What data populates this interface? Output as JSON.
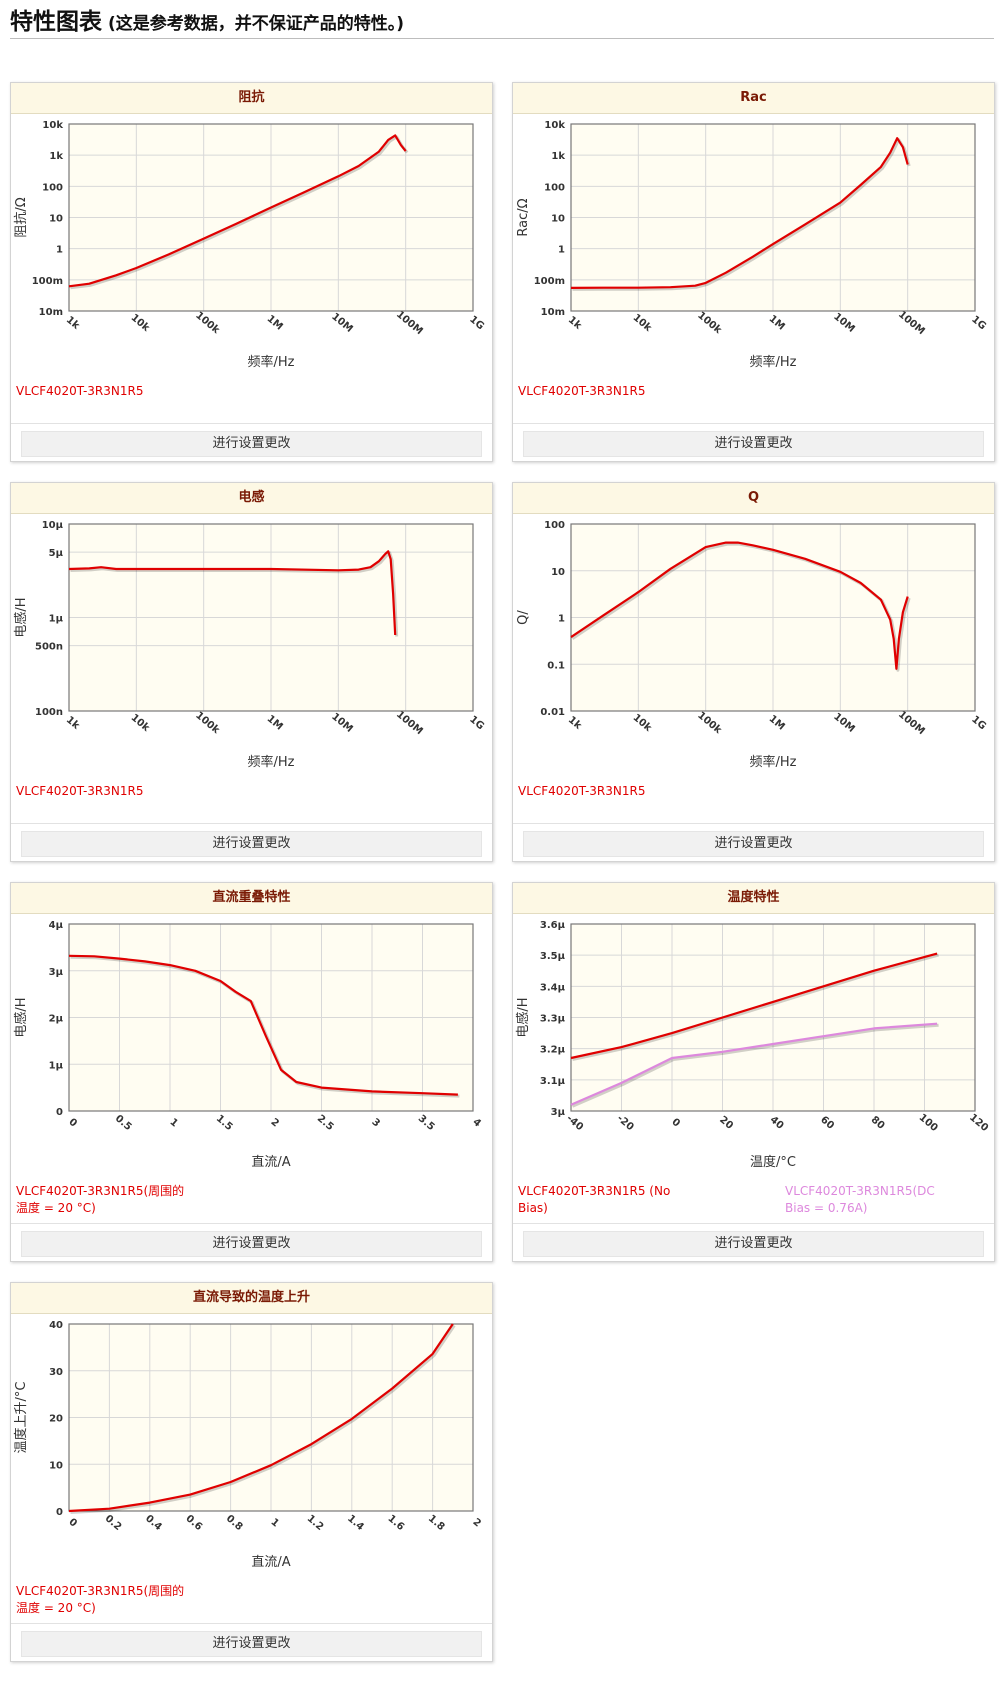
{
  "page": {
    "title": "特性图表",
    "subtitle": "(这是参考数据，并不保证产品的特性。)",
    "button_label": "进行设置更改",
    "colors": {
      "red": "#e00000",
      "pink": "#dd88dd",
      "plot_bg": "#fffdf2",
      "grid": "#d8d8d8",
      "title_bg": "#fdf8e4",
      "title_text": "#7a1a05"
    }
  },
  "charts": [
    {
      "title": "阻抗",
      "chart_data": {
        "type": "line",
        "xlabel": "频率/Hz",
        "ylabel": "阻抗/Ω",
        "x_scale": "log",
        "y_scale": "log",
        "xlim": [
          1000,
          1000000000
        ],
        "ylim": [
          0.01,
          10000
        ],
        "x_ticks": [
          {
            "v": 1000,
            "label": "1k"
          },
          {
            "v": 10000,
            "label": "10k"
          },
          {
            "v": 100000,
            "label": "100k"
          },
          {
            "v": 1000000,
            "label": "1M"
          },
          {
            "v": 10000000,
            "label": "10M"
          },
          {
            "v": 100000000,
            "label": "100M"
          },
          {
            "v": 1000000000,
            "label": "1G"
          }
        ],
        "y_ticks": [
          {
            "v": 0.01,
            "label": "10m"
          },
          {
            "v": 0.1,
            "label": "100m"
          },
          {
            "v": 1,
            "label": "1"
          },
          {
            "v": 10,
            "label": "10"
          },
          {
            "v": 100,
            "label": "100"
          },
          {
            "v": 1000,
            "label": "1k"
          },
          {
            "v": 10000,
            "label": "10k"
          }
        ],
        "series": [
          {
            "name": "VLCF4020T-3R3N1R5",
            "color": "#e00000",
            "x": [
              1000,
              2000,
              5000,
              10000,
              30000,
              100000,
              300000,
              1000000,
              3000000,
              10000000,
              20000000,
              40000000,
              55000000,
              70000000,
              85000000,
              100000000
            ],
            "y": [
              0.062,
              0.075,
              0.14,
              0.24,
              0.65,
              2.1,
              6.2,
              21,
              62,
              210,
              450,
              1300,
              3100,
              4300,
              2100,
              1350
            ]
          }
        ]
      },
      "legend": [
        "VLCF4020T-3R3N1R5"
      ]
    },
    {
      "title": "Rac",
      "chart_data": {
        "type": "line",
        "xlabel": "频率/Hz",
        "ylabel": "Rac/Ω",
        "x_scale": "log",
        "y_scale": "log",
        "xlim": [
          1000,
          1000000000
        ],
        "ylim": [
          0.01,
          10000
        ],
        "x_ticks": [
          {
            "v": 1000,
            "label": "1k"
          },
          {
            "v": 10000,
            "label": "10k"
          },
          {
            "v": 100000,
            "label": "100k"
          },
          {
            "v": 1000000,
            "label": "1M"
          },
          {
            "v": 10000000,
            "label": "10M"
          },
          {
            "v": 100000000,
            "label": "100M"
          },
          {
            "v": 1000000000,
            "label": "1G"
          }
        ],
        "y_ticks": [
          {
            "v": 0.01,
            "label": "10m"
          },
          {
            "v": 0.1,
            "label": "100m"
          },
          {
            "v": 1,
            "label": "1"
          },
          {
            "v": 10,
            "label": "10"
          },
          {
            "v": 100,
            "label": "100"
          },
          {
            "v": 1000,
            "label": "1k"
          },
          {
            "v": 10000,
            "label": "10k"
          }
        ],
        "series": [
          {
            "name": "VLCF4020T-3R3N1R5",
            "color": "#e00000",
            "x": [
              1000,
              3000,
              10000,
              30000,
              70000,
              100000,
              200000,
              500000,
              1000000,
              3000000,
              10000000,
              20000000,
              40000000,
              55000000,
              70000000,
              85000000,
              100000000
            ],
            "y": [
              0.055,
              0.056,
              0.056,
              0.058,
              0.065,
              0.08,
              0.17,
              0.55,
              1.4,
              6,
              30,
              110,
              420,
              1200,
              3500,
              1800,
              500
            ]
          }
        ]
      },
      "legend": [
        "VLCF4020T-3R3N1R5"
      ]
    },
    {
      "title": "电感",
      "chart_data": {
        "type": "line",
        "xlabel": "频率/Hz",
        "ylabel": "电感/H",
        "x_scale": "log",
        "y_scale": "log",
        "xlim": [
          1000,
          1000000000
        ],
        "ylim": [
          1e-07,
          1e-05
        ],
        "x_ticks": [
          {
            "v": 1000,
            "label": "1k"
          },
          {
            "v": 10000,
            "label": "10k"
          },
          {
            "v": 100000,
            "label": "100k"
          },
          {
            "v": 1000000,
            "label": "1M"
          },
          {
            "v": 10000000,
            "label": "10M"
          },
          {
            "v": 100000000,
            "label": "100M"
          },
          {
            "v": 1000000000,
            "label": "1G"
          }
        ],
        "y_ticks": [
          {
            "v": 1e-07,
            "label": "100n"
          },
          {
            "v": 5e-07,
            "label": "500n"
          },
          {
            "v": 1e-06,
            "label": "1μ"
          },
          {
            "v": 5e-06,
            "label": "5μ"
          },
          {
            "v": 1e-05,
            "label": "10μ"
          }
        ],
        "series": [
          {
            "name": "VLCF4020T-3R3N1R5",
            "color": "#e00000",
            "x": [
              1000,
              2000,
              3000,
              5000,
              10000,
              100000,
              1000000,
              10000000,
              20000000,
              30000000,
              40000000,
              50000000,
              55000000,
              60000000,
              65000000,
              70000000
            ],
            "y": [
              3.3e-06,
              3.35e-06,
              3.45e-06,
              3.3e-06,
              3.3e-06,
              3.3e-06,
              3.3e-06,
              3.2e-06,
              3.25e-06,
              3.45e-06,
              4e-06,
              4.8e-06,
              5.1e-06,
              4.2e-06,
              1.8e-06,
              6.5e-07
            ]
          }
        ]
      },
      "legend": [
        "VLCF4020T-3R3N1R5"
      ]
    },
    {
      "title": "Q",
      "chart_data": {
        "type": "line",
        "xlabel": "频率/Hz",
        "ylabel": "Q/",
        "x_scale": "log",
        "y_scale": "log",
        "xlim": [
          1000,
          1000000000
        ],
        "ylim": [
          0.01,
          100
        ],
        "x_ticks": [
          {
            "v": 1000,
            "label": "1k"
          },
          {
            "v": 10000,
            "label": "10k"
          },
          {
            "v": 100000,
            "label": "100k"
          },
          {
            "v": 1000000,
            "label": "1M"
          },
          {
            "v": 10000000,
            "label": "10M"
          },
          {
            "v": 100000000,
            "label": "100M"
          },
          {
            "v": 1000000000,
            "label": "1G"
          }
        ],
        "y_ticks": [
          {
            "v": 0.01,
            "label": "0.01"
          },
          {
            "v": 0.1,
            "label": "0.1"
          },
          {
            "v": 1,
            "label": "1"
          },
          {
            "v": 10,
            "label": "10"
          },
          {
            "v": 100,
            "label": "100"
          }
        ],
        "series": [
          {
            "name": "VLCF4020T-3R3N1R5",
            "color": "#e00000",
            "x": [
              1000,
              3000,
              10000,
              30000,
              100000,
              200000,
              300000,
              500000,
              1000000,
              3000000,
              10000000,
              20000000,
              40000000,
              55000000,
              62000000,
              68000000,
              74000000,
              85000000,
              100000000
            ],
            "y": [
              0.38,
              1.1,
              3.5,
              11,
              32,
              40,
              40,
              35,
              28,
              18,
              9.5,
              5.5,
              2.4,
              0.9,
              0.35,
              0.08,
              0.35,
              1.3,
              2.8
            ]
          }
        ]
      },
      "legend": [
        "VLCF4020T-3R3N1R5"
      ]
    },
    {
      "title": "直流重叠特性",
      "chart_data": {
        "type": "line",
        "xlabel": "直流/A",
        "ylabel": "电感/H",
        "x_scale": "linear",
        "y_scale": "linear",
        "xlim": [
          0,
          4
        ],
        "ylim": [
          0,
          4e-06
        ],
        "x_ticks": [
          {
            "v": 0,
            "label": "0"
          },
          {
            "v": 0.5,
            "label": "0.5"
          },
          {
            "v": 1,
            "label": "1"
          },
          {
            "v": 1.5,
            "label": "1.5"
          },
          {
            "v": 2,
            "label": "2"
          },
          {
            "v": 2.5,
            "label": "2.5"
          },
          {
            "v": 3,
            "label": "3"
          },
          {
            "v": 3.5,
            "label": "3.5"
          },
          {
            "v": 4,
            "label": "4"
          }
        ],
        "y_ticks": [
          {
            "v": 0,
            "label": "0"
          },
          {
            "v": 1e-06,
            "label": "1μ"
          },
          {
            "v": 2e-06,
            "label": "2μ"
          },
          {
            "v": 3e-06,
            "label": "3μ"
          },
          {
            "v": 4e-06,
            "label": "4μ"
          }
        ],
        "series": [
          {
            "name": "VLCF4020T-3R3N1R5(周围的温度 = 20 °C)",
            "color": "#e00000",
            "x": [
              0,
              0.25,
              0.5,
              0.75,
              1.0,
              1.25,
              1.5,
              1.65,
              1.8,
              1.95,
              2.1,
              2.25,
              2.5,
              3.0,
              3.5,
              3.85
            ],
            "y": [
              3.32e-06,
              3.31e-06,
              3.26e-06,
              3.2e-06,
              3.12e-06,
              3e-06,
              2.78e-06,
              2.55e-06,
              2.35e-06,
              1.6e-06,
              8.8e-07,
              6.2e-07,
              5e-07,
              4.2e-07,
              3.8e-07,
              3.5e-07
            ]
          }
        ]
      },
      "legend": [
        "VLCF4020T-3R3N1R5(周围的温度 = 20 °C)"
      ]
    },
    {
      "title": "温度特性",
      "chart_data": {
        "type": "line",
        "xlabel": "温度/°C",
        "ylabel": "电感/H",
        "x_scale": "linear",
        "y_scale": "linear",
        "xlim": [
          -40,
          120
        ],
        "ylim": [
          3e-06,
          3.6e-06
        ],
        "x_ticks": [
          {
            "v": -40,
            "label": "-40"
          },
          {
            "v": -20,
            "label": "-20"
          },
          {
            "v": 0,
            "label": "0"
          },
          {
            "v": 20,
            "label": "20"
          },
          {
            "v": 40,
            "label": "40"
          },
          {
            "v": 60,
            "label": "60"
          },
          {
            "v": 80,
            "label": "80"
          },
          {
            "v": 100,
            "label": "100"
          },
          {
            "v": 120,
            "label": "120"
          }
        ],
        "y_ticks": [
          {
            "v": 3e-06,
            "label": "3μ"
          },
          {
            "v": 3.1e-06,
            "label": "3.1μ"
          },
          {
            "v": 3.2e-06,
            "label": "3.2μ"
          },
          {
            "v": 3.3e-06,
            "label": "3.3μ"
          },
          {
            "v": 3.4e-06,
            "label": "3.4μ"
          },
          {
            "v": 3.5e-06,
            "label": "3.5μ"
          },
          {
            "v": 3.6e-06,
            "label": "3.6μ"
          }
        ],
        "series": [
          {
            "name": "VLCF4020T-3R3N1R5 (No Bias)",
            "color": "#e00000",
            "x": [
              -40,
              -20,
              0,
              20,
              40,
              60,
              80,
              105
            ],
            "y": [
              3.17e-06,
              3.205e-06,
              3.25e-06,
              3.3e-06,
              3.35e-06,
              3.4e-06,
              3.45e-06,
              3.505e-06
            ]
          },
          {
            "name": "VLCF4020T-3R3N1R5(DC Bias = 0.76A)",
            "color": "#dd88dd",
            "x": [
              -40,
              -20,
              0,
              20,
              40,
              60,
              80,
              105
            ],
            "y": [
              3.02e-06,
              3.09e-06,
              3.17e-06,
              3.19e-06,
              3.215e-06,
              3.24e-06,
              3.265e-06,
              3.28e-06
            ]
          }
        ]
      },
      "legend": [
        "VLCF4020T-3R3N1R5 (No Bias)",
        "VLCF4020T-3R3N1R5(DC Bias = 0.76A)"
      ]
    },
    {
      "title": "直流导致的温度上升",
      "chart_data": {
        "type": "line",
        "xlabel": "直流/A",
        "ylabel": "温度上升/°C",
        "x_scale": "linear",
        "y_scale": "linear",
        "xlim": [
          0,
          2
        ],
        "ylim": [
          0,
          40
        ],
        "x_ticks": [
          {
            "v": 0,
            "label": "0"
          },
          {
            "v": 0.2,
            "label": "0.2"
          },
          {
            "v": 0.4,
            "label": "0.4"
          },
          {
            "v": 0.6,
            "label": "0.6"
          },
          {
            "v": 0.8,
            "label": "0.8"
          },
          {
            "v": 1,
            "label": "1"
          },
          {
            "v": 1.2,
            "label": "1.2"
          },
          {
            "v": 1.4,
            "label": "1.4"
          },
          {
            "v": 1.6,
            "label": "1.6"
          },
          {
            "v": 1.8,
            "label": "1.8"
          },
          {
            "v": 2,
            "label": "2"
          }
        ],
        "y_ticks": [
          {
            "v": 0,
            "label": "0"
          },
          {
            "v": 10,
            "label": "10"
          },
          {
            "v": 20,
            "label": "20"
          },
          {
            "v": 30,
            "label": "30"
          },
          {
            "v": 40,
            "label": "40"
          }
        ],
        "series": [
          {
            "name": "VLCF4020T-3R3N1R5(周围的温度 = 20 °C)",
            "color": "#e00000",
            "x": [
              0,
              0.2,
              0.4,
              0.6,
              0.8,
              1.0,
              1.2,
              1.4,
              1.6,
              1.8,
              1.9
            ],
            "y": [
              0,
              0.5,
              1.8,
              3.5,
              6.2,
              9.8,
              14.3,
              19.7,
              26.2,
              33.6,
              40
            ]
          }
        ]
      },
      "legend": [
        "VLCF4020T-3R3N1R5(周围的温度 = 20 °C)"
      ]
    }
  ]
}
